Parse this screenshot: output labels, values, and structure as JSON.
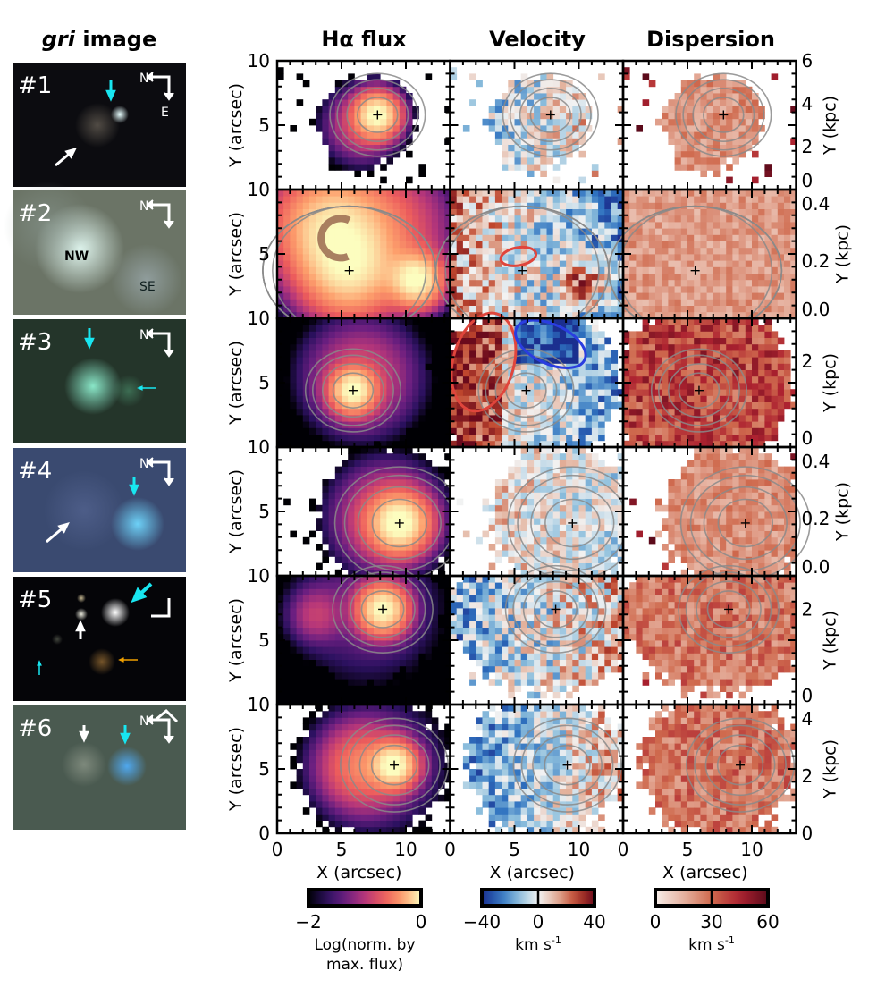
{
  "figure": {
    "thumb_title_italic": "gri",
    "thumb_title_rest": " image",
    "column_titles": [
      "Hα flux",
      "Velocity",
      "Dispersion"
    ],
    "ylabel": "Y (arcsec)",
    "xlabel": "X (arcsec)",
    "ylabel_right": "Y (kpc)"
  },
  "thumbnails": [
    {
      "label": "#1",
      "compass": [
        "N",
        "E"
      ],
      "notes": []
    },
    {
      "label": "#2",
      "compass": [
        "N"
      ],
      "notes": [
        "NW",
        "SE"
      ]
    },
    {
      "label": "#3",
      "compass": [
        "N"
      ],
      "notes": []
    },
    {
      "label": "#4",
      "compass": [
        "N"
      ],
      "notes": []
    },
    {
      "label": "#5",
      "compass": [],
      "notes": []
    },
    {
      "label": "#6",
      "compass": [
        "N"
      ],
      "notes": []
    }
  ],
  "colorbars": [
    {
      "ticks": [
        "−2",
        "0"
      ],
      "label_lines": [
        "Log(norm. by",
        "max. flux)"
      ],
      "range": [
        -2,
        0
      ],
      "cmap": "magma"
    },
    {
      "ticks": [
        "−40",
        "0",
        "40"
      ],
      "label_lines": [
        "km s",
        "-1"
      ],
      "range": [
        -40,
        40
      ],
      "cmap": "blue-white-red"
    },
    {
      "ticks": [
        "0",
        "30",
        "60"
      ],
      "label_lines": [
        "km s",
        "-1"
      ],
      "range": [
        0,
        60
      ],
      "cmap": "reds"
    }
  ],
  "chart_data": {
    "type": "heatmap",
    "grid": "3 columns x 6 rows of maps",
    "xlim": [
      0,
      13.4
    ],
    "ylim": [
      0,
      10
    ],
    "x_ticks": [
      "0",
      "5",
      "10"
    ],
    "y_ticks": [
      "0",
      "5",
      "10"
    ],
    "rows": [
      {
        "galaxy": "#1",
        "center": [
          7.8,
          5.8
        ],
        "kpc_ticks": [
          "0",
          "2",
          "4",
          "6"
        ],
        "kpc_range": [
          0,
          6
        ]
      },
      {
        "galaxy": "#2",
        "center": [
          5.6,
          3.7
        ],
        "kpc_ticks": [
          "0.0",
          "0.2",
          "0.4"
        ],
        "kpc_range": [
          0,
          0.45
        ]
      },
      {
        "galaxy": "#3",
        "center": [
          5.9,
          4.4
        ],
        "kpc_ticks": [
          "0",
          "2"
        ],
        "kpc_range": [
          0,
          3
        ]
      },
      {
        "galaxy": "#4",
        "center": [
          9.5,
          4.1
        ],
        "kpc_ticks": [
          "0.0",
          "0.2",
          "0.4"
        ],
        "kpc_range": [
          0,
          0.45
        ]
      },
      {
        "galaxy": "#5",
        "center": [
          8.2,
          7.4
        ],
        "kpc_ticks": [
          "0",
          "2"
        ],
        "kpc_range": [
          0,
          2.7
        ]
      },
      {
        "galaxy": "#6",
        "center": [
          9.1,
          5.3
        ],
        "kpc_ticks": [
          "0",
          "2",
          "4"
        ],
        "kpc_range": [
          0,
          4.5
        ]
      }
    ],
    "colors": {
      "contour": "#8a8a8a",
      "ellipse_red": "#e0453c",
      "ellipse_blue": "#2a3de0",
      "arrow_cyan": "#18e6f0",
      "arrow_orange": "#f0a000"
    }
  }
}
